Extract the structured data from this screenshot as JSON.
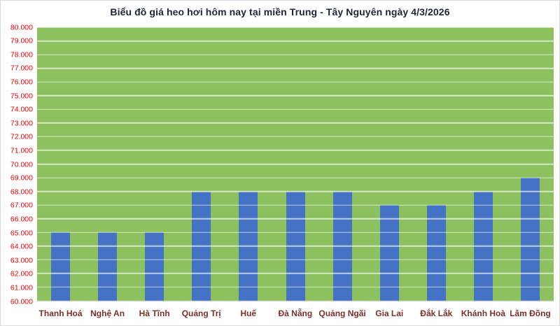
{
  "chart_data": {
    "type": "bar",
    "title": "Biểu đồ giá heo hơi hôm nay tại miền Trung - Tây Nguyên ngày 4/3/2026",
    "categories": [
      "Thanh Hoá",
      "Nghệ An",
      "Hà Tĩnh",
      "Quảng Trị",
      "Huế",
      "Đà Nẵng",
      "Quảng Ngãi",
      "Gia Lai",
      "Đắk Lắk",
      "Khánh Hoà",
      "Lâm Đồng"
    ],
    "values": [
      65000,
      65000,
      65000,
      68000,
      68000,
      68000,
      68000,
      67000,
      67000,
      68000,
      69000
    ],
    "value_labels": [
      "65.000",
      "65.000",
      "65.000",
      "68.000",
      "68.000",
      "68.000",
      "68.000",
      "67.000",
      "67.000",
      "68.000",
      "69.000"
    ],
    "xlabel": "",
    "ylabel": "",
    "ylim": [
      60000,
      80000
    ],
    "y_tick_step": 1000,
    "y_ticks_top_to_bottom": [
      "80.000",
      "79.000",
      "78.000",
      "77.000",
      "76.000",
      "75.000",
      "74.000",
      "73.000",
      "72.000",
      "71.000",
      "70.000",
      "69.000",
      "68.000",
      "67.000",
      "66.000",
      "65.000",
      "64.000",
      "63.000",
      "62.000",
      "61.000",
      "60.000"
    ],
    "grid": "horizontal-white-lines",
    "legend_position": "none",
    "colors": {
      "bar": "#4472C4",
      "plot_background": "#8DC05F",
      "gridline": "rgba(255,255,255,0.8)",
      "y_tick_text": "#EE0000",
      "x_tick_text": "#7B2F2F",
      "title_text": "#1F2433",
      "page_background": "#FFFFFF"
    }
  }
}
